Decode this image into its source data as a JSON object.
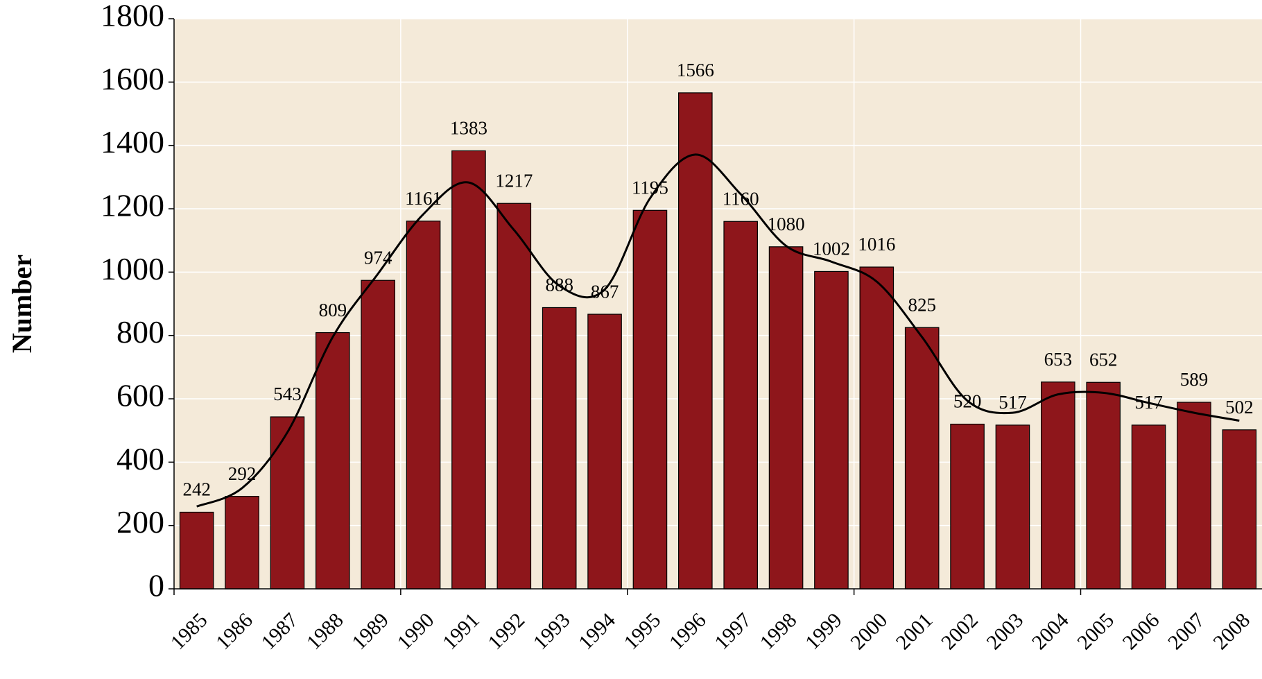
{
  "chart_data": {
    "type": "bar",
    "y_label": "Number",
    "categories": [
      "1985",
      "1986",
      "1987",
      "1988",
      "1989",
      "1990",
      "1991",
      "1992",
      "1993",
      "1994",
      "1995",
      "1996",
      "1997",
      "1998",
      "1999",
      "2000",
      "2001",
      "2002",
      "2003",
      "2004",
      "2005",
      "2006",
      "2007",
      "2008"
    ],
    "series": [
      {
        "type": "bar",
        "color": "#8e161b",
        "values": [
          242,
          292,
          543,
          809,
          974,
          1161,
          1383,
          1217,
          888,
          867,
          1195,
          1566,
          1160,
          1080,
          1002,
          1016,
          825,
          520,
          517,
          653,
          652,
          517,
          589,
          502
        ]
      },
      {
        "type": "line",
        "color": "#000000",
        "values": [
          260,
          318,
          494,
          795,
          995,
          1183,
          1283,
          1133,
          957,
          945,
          1233,
          1371,
          1246,
          1083,
          1033,
          970,
          795,
          594,
          556,
          614,
          619,
          587,
          556,
          531
        ]
      }
    ],
    "ylim": [
      0,
      1800
    ],
    "yticks": [
      0,
      200,
      400,
      600,
      800,
      1000,
      1200,
      1400,
      1600,
      1800
    ],
    "grid": true,
    "background": "#f4ead9"
  }
}
